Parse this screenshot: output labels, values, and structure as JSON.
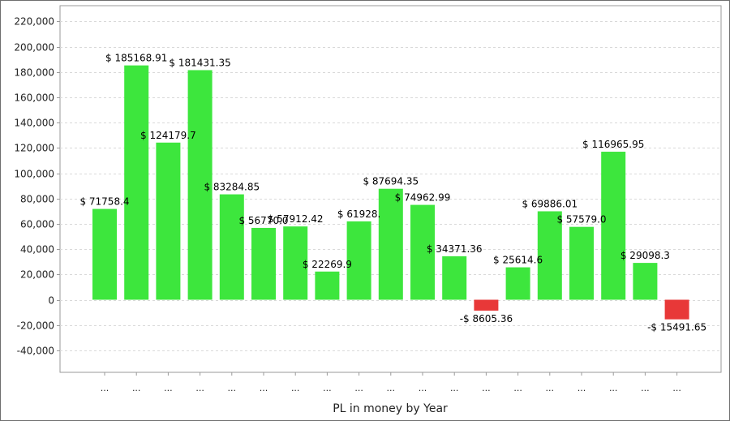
{
  "chart_data": {
    "type": "bar",
    "title": "",
    "xlabel": "PL in money by Year",
    "ylabel": "",
    "ylim": [
      -55000,
      225000
    ],
    "yticks": [
      -40000,
      -20000,
      0,
      20000,
      40000,
      60000,
      80000,
      100000,
      120000,
      140000,
      160000,
      180000,
      200000,
      220000
    ],
    "ytick_labels": [
      "-40,000",
      "-20,000",
      "0",
      "20,000",
      "40,000",
      "60,000",
      "80,000",
      "100,000",
      "120,000",
      "140,000",
      "160,000",
      "180,000",
      "200,000",
      "220,000"
    ],
    "categories": [
      "...",
      "...",
      "...",
      "...",
      "...",
      "...",
      "...",
      "...",
      "...",
      "...",
      "...",
      "...",
      "...",
      "...",
      "...",
      "...",
      "...",
      "...",
      "..."
    ],
    "values": [
      71758.4,
      185168.91,
      124179.7,
      181431.35,
      83284.85,
      56770.0,
      57912.42,
      22269.9,
      61928.0,
      87694.35,
      74962.99,
      34371.36,
      -8605.36,
      25614.6,
      69886.01,
      57579.0,
      116965.95,
      29098.3,
      -15491.65
    ],
    "data_labels": [
      "$ 71758.4",
      "$ 185168.91",
      "$ 124179.7",
      "$ 181431.35",
      "$ 83284.85",
      "$ 56770.0",
      "$ 57912.42",
      "$ 22269.9",
      "$ 61928.",
      "$ 87694.35",
      "$ 74962.99",
      "$ 34371.36",
      "-$ 8605.36",
      "$ 25614.6",
      "$ 69886.01",
      "$ 57579.0",
      "$ 116965.95",
      "$ 29098.3",
      "-$ 15491.65"
    ],
    "grid": true,
    "legend": "none",
    "colors": {
      "positive": "#3de63d",
      "negative": "#e83838",
      "grid": "#d9d9d9",
      "axis": "#9a9a9a"
    }
  }
}
